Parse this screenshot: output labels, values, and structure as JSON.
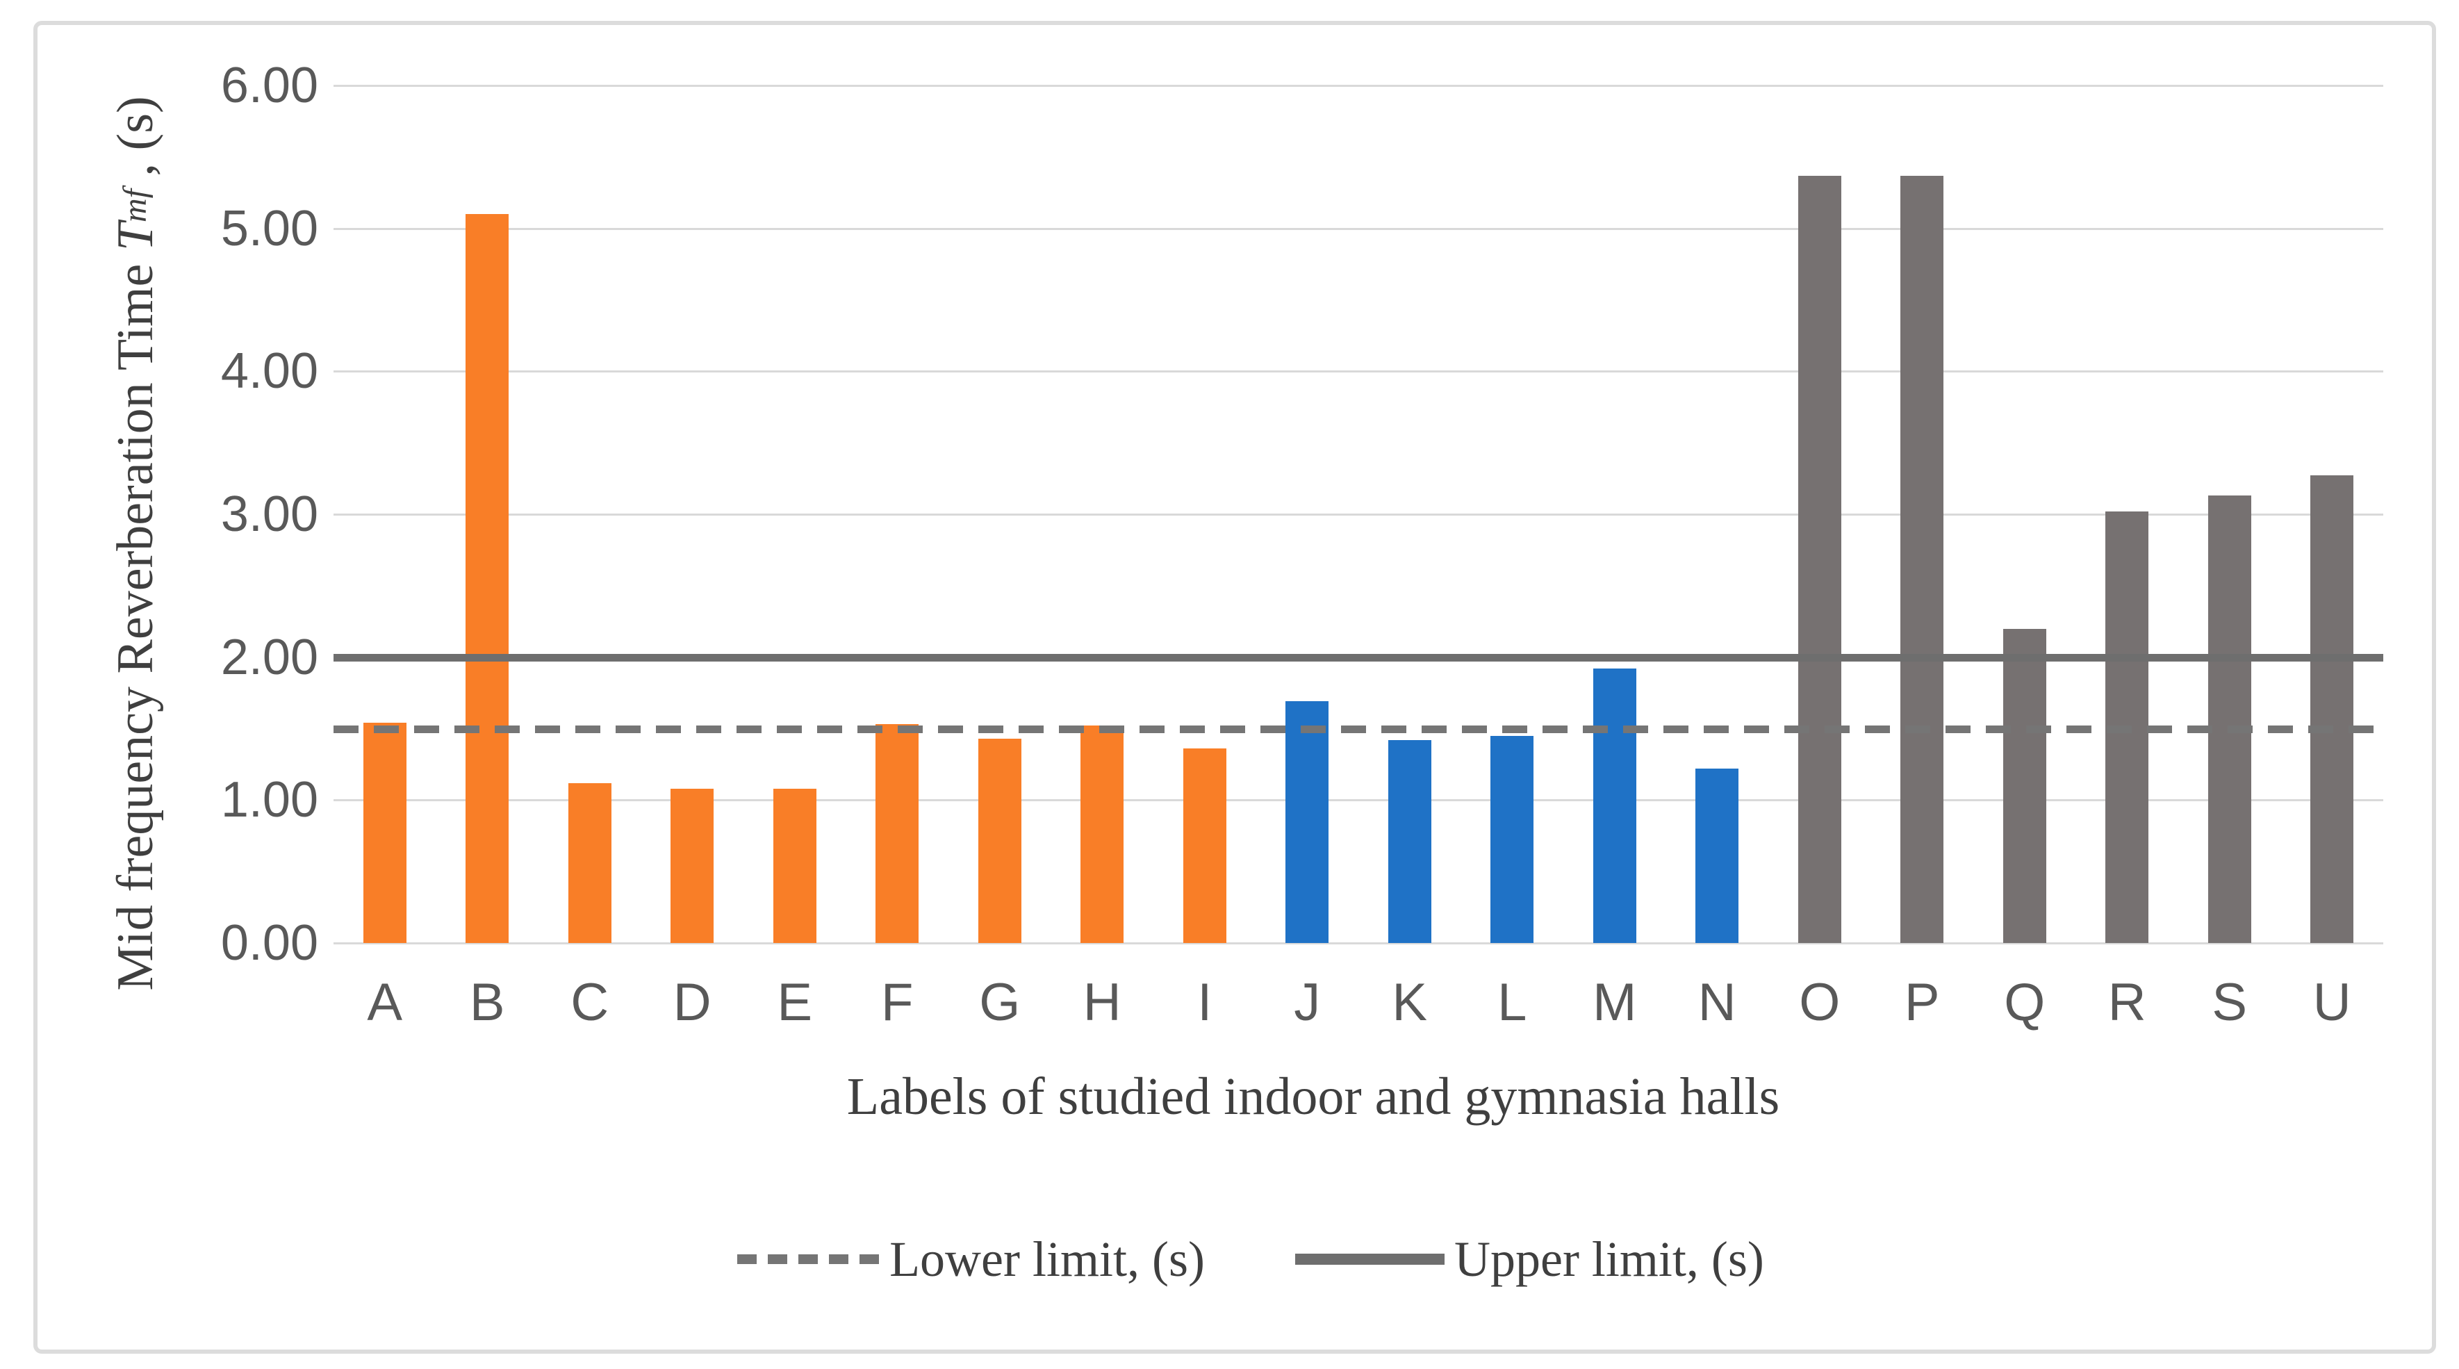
{
  "figure": {
    "background": "#ffffff",
    "border_color": "#dcdcdc"
  },
  "chart_data": {
    "type": "bar",
    "title": "",
    "xlabel": "Labels of studied indoor and gymnasia halls",
    "ylabel": {
      "prefix": "Mid frequency Reverberation Time ",
      "symbol": "T",
      "subscript": "mf",
      "suffix": " , (s)"
    },
    "categories": [
      "A",
      "B",
      "C",
      "D",
      "E",
      "F",
      "G",
      "H",
      "I",
      "J",
      "K",
      "L",
      "M",
      "N",
      "O",
      "P",
      "Q",
      "R",
      "S",
      "U"
    ],
    "values": [
      1.54,
      5.1,
      1.12,
      1.08,
      1.08,
      1.53,
      1.43,
      1.52,
      1.36,
      1.69,
      1.42,
      1.45,
      1.92,
      1.22,
      5.37,
      5.37,
      2.2,
      3.02,
      3.13,
      3.27
    ],
    "bar_colors": [
      "#F97E27",
      "#F97E27",
      "#F97E27",
      "#F97E27",
      "#F97E27",
      "#F97E27",
      "#F97E27",
      "#F97E27",
      "#F97E27",
      "#1F72C6",
      "#1F72C6",
      "#1F72C6",
      "#1F72C6",
      "#1F72C6",
      "#767171",
      "#767171",
      "#767171",
      "#767171",
      "#767171",
      "#767171"
    ],
    "color_groups": [
      {
        "categories": "A-I",
        "color": "#F97E27"
      },
      {
        "categories": "J-N",
        "color": "#1F72C6"
      },
      {
        "categories": "O-U",
        "color": "#767171"
      }
    ],
    "ylim": [
      0,
      6
    ],
    "ytick_labels": [
      "0.00",
      "1.00",
      "2.00",
      "3.00",
      "4.00",
      "5.00",
      "6.00"
    ],
    "grid": "horizontal",
    "gridline_color": "#d9d9d9",
    "reference_lines": [
      {
        "name": "Lower limit, (s)",
        "value": 1.5,
        "style": "dashed",
        "color": "#757575"
      },
      {
        "name": "Upper limit, (s)",
        "value": 2.0,
        "style": "solid",
        "color": "#6e6e6e"
      }
    ],
    "legend_position": "bottom"
  },
  "legend": {
    "lower_label": "Lower limit, (s)",
    "upper_label": "Upper limit, (s)"
  },
  "text_colors": {
    "tick_text": "#595959",
    "title_text": "#3f3f3f"
  }
}
